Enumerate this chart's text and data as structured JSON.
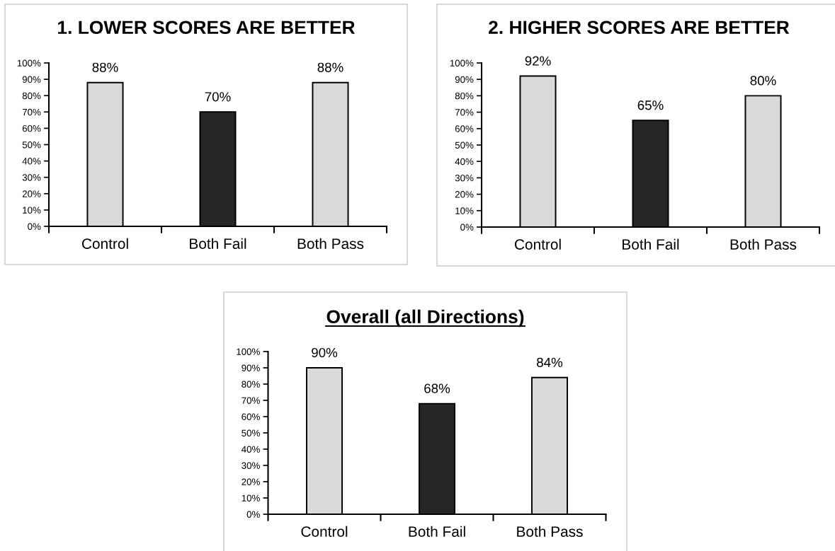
{
  "chart_data": [
    {
      "type": "bar",
      "title": "1. LOWER SCORES ARE BETTER",
      "categories": [
        "Control",
        "Both Fail",
        "Both Pass"
      ],
      "values": [
        88,
        70,
        88
      ],
      "colors": [
        "#d9d9d9",
        "#262626",
        "#d9d9d9"
      ],
      "value_labels": [
        "88%",
        "70%",
        "88%"
      ],
      "ylim": [
        0,
        100
      ],
      "yticks": [
        {
          "value": 0,
          "label": "0%"
        },
        {
          "value": 10,
          "label": "10%"
        },
        {
          "value": 20,
          "label": "20%"
        },
        {
          "value": 30,
          "label": "30%"
        },
        {
          "value": 40,
          "label": "40%"
        },
        {
          "value": 50,
          "label": "50%"
        },
        {
          "value": 60,
          "label": "60%"
        },
        {
          "value": 70,
          "label": "70%"
        },
        {
          "value": 80,
          "label": "80%"
        },
        {
          "value": 90,
          "label": "90%"
        },
        {
          "value": 100,
          "label": "100%"
        }
      ]
    },
    {
      "type": "bar",
      "title": "2. HIGHER SCORES ARE BETTER",
      "categories": [
        "Control",
        "Both Fail",
        "Both Pass"
      ],
      "values": [
        92,
        65,
        80
      ],
      "colors": [
        "#d9d9d9",
        "#262626",
        "#d9d9d9"
      ],
      "value_labels": [
        "92%",
        "65%",
        "80%"
      ],
      "ylim": [
        0,
        100
      ],
      "yticks": [
        {
          "value": 0,
          "label": "0%"
        },
        {
          "value": 10,
          "label": "10%"
        },
        {
          "value": 20,
          "label": "20%"
        },
        {
          "value": 30,
          "label": "30%"
        },
        {
          "value": 40,
          "label": "40%"
        },
        {
          "value": 50,
          "label": "50%"
        },
        {
          "value": 60,
          "label": "60%"
        },
        {
          "value": 70,
          "label": "70%"
        },
        {
          "value": 80,
          "label": "80%"
        },
        {
          "value": 90,
          "label": "90%"
        },
        {
          "value": 100,
          "label": "100%"
        }
      ]
    },
    {
      "type": "bar",
      "title": "Overall (all Directions)",
      "categories": [
        "Control",
        "Both Fail",
        "Both Pass"
      ],
      "values": [
        90,
        68,
        84
      ],
      "colors": [
        "#d9d9d9",
        "#262626",
        "#d9d9d9"
      ],
      "value_labels": [
        "90%",
        "68%",
        "84%"
      ],
      "ylim": [
        0,
        100
      ],
      "yticks": [
        {
          "value": 0,
          "label": "0%"
        },
        {
          "value": 10,
          "label": "10%"
        },
        {
          "value": 20,
          "label": "20%"
        },
        {
          "value": 30,
          "label": "30%"
        },
        {
          "value": 40,
          "label": "40%"
        },
        {
          "value": 50,
          "label": "50%"
        },
        {
          "value": 60,
          "label": "60%"
        },
        {
          "value": 70,
          "label": "70%"
        },
        {
          "value": 80,
          "label": "80%"
        },
        {
          "value": 90,
          "label": "90%"
        },
        {
          "value": 100,
          "label": "100%"
        }
      ]
    }
  ]
}
